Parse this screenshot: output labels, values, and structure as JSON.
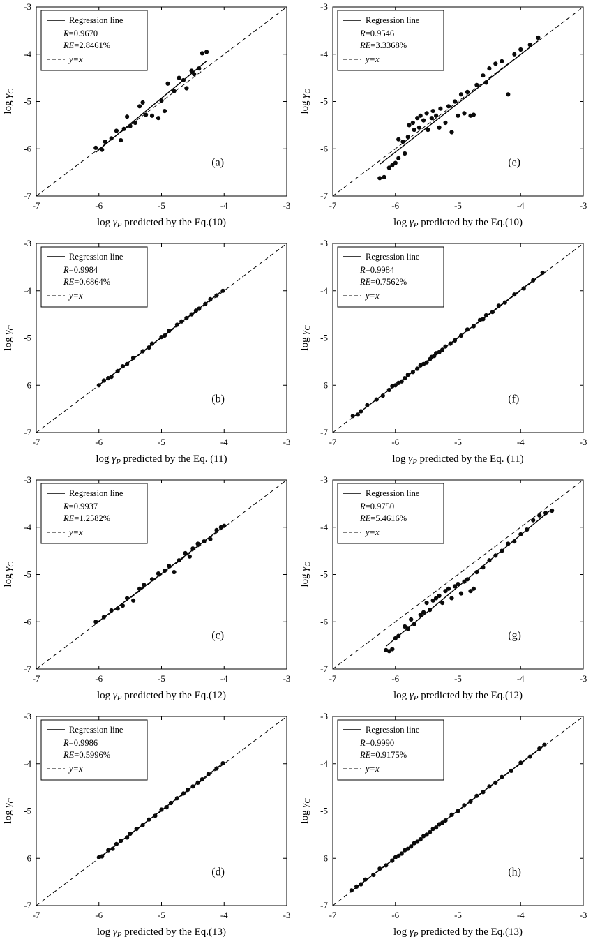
{
  "figure": {
    "ticks": [
      -7,
      -6,
      -5,
      -4,
      -3
    ],
    "tick_labels": [
      "-7",
      "-6",
      "-5",
      "-4",
      "-3"
    ],
    "legend": {
      "regression_label": "Regression line",
      "identity_label": "y=x"
    },
    "axis": {
      "log_prefix": "log ",
      "gamma": "γ",
      "x_sub": "P",
      "y_sub": "C",
      "ylabel": "log γC"
    }
  },
  "chart_data": [
    {
      "type": "scatter",
      "letter": "(a)",
      "r_text": "R=0.9670",
      "re_text": "RE=2.8461%",
      "xlabel": "log γP predicted by the Eq.(10)",
      "xlabel_rest": " predicted by the Eq.(10)",
      "ylabel": "log γC",
      "xlim": [
        -7,
        -3
      ],
      "ylim": [
        -7,
        -3
      ],
      "grid": false,
      "legend_position": "top-left",
      "points": [
        [
          -6.05,
          -5.98
        ],
        [
          -5.95,
          -6.02
        ],
        [
          -5.9,
          -5.85
        ],
        [
          -5.8,
          -5.78
        ],
        [
          -5.72,
          -5.62
        ],
        [
          -5.65,
          -5.82
        ],
        [
          -5.6,
          -5.58
        ],
        [
          -5.55,
          -5.32
        ],
        [
          -5.5,
          -5.52
        ],
        [
          -5.42,
          -5.45
        ],
        [
          -5.35,
          -5.1
        ],
        [
          -5.3,
          -5.02
        ],
        [
          -5.25,
          -5.28
        ],
        [
          -5.15,
          -5.3
        ],
        [
          -5.05,
          -5.35
        ],
        [
          -5.0,
          -4.98
        ],
        [
          -4.95,
          -5.2
        ],
        [
          -4.9,
          -4.62
        ],
        [
          -4.8,
          -4.78
        ],
        [
          -4.72,
          -4.5
        ],
        [
          -4.65,
          -4.55
        ],
        [
          -4.6,
          -4.72
        ],
        [
          -4.52,
          -4.35
        ],
        [
          -4.48,
          -4.42
        ],
        [
          -4.4,
          -4.3
        ],
        [
          -4.35,
          -3.98
        ],
        [
          -4.28,
          -3.95
        ]
      ]
    },
    {
      "type": "scatter",
      "letter": "(b)",
      "r_text": "R=0.9984",
      "re_text": "RE=0.6864%",
      "xlabel": "log γP predicted by the Eq. (11)",
      "xlabel_rest": " predicted by the Eq. (11)",
      "ylabel": "log γC",
      "xlim": [
        -7,
        -3
      ],
      "ylim": [
        -7,
        -3
      ],
      "grid": false,
      "legend_position": "top-left",
      "points": [
        [
          -6.0,
          -6.0
        ],
        [
          -5.92,
          -5.9
        ],
        [
          -5.85,
          -5.85
        ],
        [
          -5.8,
          -5.82
        ],
        [
          -5.7,
          -5.7
        ],
        [
          -5.62,
          -5.6
        ],
        [
          -5.55,
          -5.55
        ],
        [
          -5.45,
          -5.42
        ],
        [
          -5.3,
          -5.28
        ],
        [
          -5.2,
          -5.2
        ],
        [
          -5.15,
          -5.12
        ],
        [
          -5.0,
          -4.98
        ],
        [
          -4.95,
          -4.95
        ],
        [
          -4.88,
          -4.85
        ],
        [
          -4.75,
          -4.72
        ],
        [
          -4.68,
          -4.65
        ],
        [
          -4.6,
          -4.58
        ],
        [
          -4.52,
          -4.5
        ],
        [
          -4.45,
          -4.42
        ],
        [
          -4.4,
          -4.38
        ],
        [
          -4.3,
          -4.28
        ],
        [
          -4.22,
          -4.18
        ],
        [
          -4.12,
          -4.1
        ],
        [
          -4.02,
          -4.0
        ]
      ]
    },
    {
      "type": "scatter",
      "letter": "(c)",
      "r_text": "R=0.9937",
      "re_text": "RE=1.2582%",
      "xlabel": "log γP predicted by the Eq.(12)",
      "xlabel_rest": " predicted by the Eq.(12)",
      "ylabel": "log γC",
      "xlim": [
        -7,
        -3
      ],
      "ylim": [
        -7,
        -3
      ],
      "grid": false,
      "legend_position": "top-left",
      "points": [
        [
          -6.05,
          -6.0
        ],
        [
          -5.92,
          -5.9
        ],
        [
          -5.8,
          -5.76
        ],
        [
          -5.7,
          -5.72
        ],
        [
          -5.62,
          -5.66
        ],
        [
          -5.55,
          -5.5
        ],
        [
          -5.45,
          -5.55
        ],
        [
          -5.35,
          -5.3
        ],
        [
          -5.28,
          -5.22
        ],
        [
          -5.15,
          -5.1
        ],
        [
          -5.05,
          -4.98
        ],
        [
          -4.95,
          -4.92
        ],
        [
          -4.88,
          -4.82
        ],
        [
          -4.8,
          -4.95
        ],
        [
          -4.72,
          -4.7
        ],
        [
          -4.62,
          -4.55
        ],
        [
          -4.55,
          -4.62
        ],
        [
          -4.5,
          -4.45
        ],
        [
          -4.42,
          -4.35
        ],
        [
          -4.32,
          -4.3
        ],
        [
          -4.22,
          -4.25
        ],
        [
          -4.12,
          -4.06
        ],
        [
          -4.05,
          -4.0
        ],
        [
          -4.0,
          -3.97
        ]
      ]
    },
    {
      "type": "scatter",
      "letter": "(d)",
      "r_text": "R=0.9986",
      "re_text": "RE=0.5996%",
      "xlabel": "log γP predicted by the Eq.(13)",
      "xlabel_rest": " predicted by the Eq.(13)",
      "ylabel": "log γC",
      "xlim": [
        -7,
        -3
      ],
      "ylim": [
        -7,
        -3
      ],
      "grid": false,
      "legend_position": "top-left",
      "points": [
        [
          -6.0,
          -5.98
        ],
        [
          -5.95,
          -5.96
        ],
        [
          -5.85,
          -5.83
        ],
        [
          -5.78,
          -5.8
        ],
        [
          -5.72,
          -5.7
        ],
        [
          -5.65,
          -5.63
        ],
        [
          -5.55,
          -5.56
        ],
        [
          -5.5,
          -5.48
        ],
        [
          -5.4,
          -5.38
        ],
        [
          -5.3,
          -5.3
        ],
        [
          -5.2,
          -5.18
        ],
        [
          -5.1,
          -5.1
        ],
        [
          -5.0,
          -4.97
        ],
        [
          -4.92,
          -4.92
        ],
        [
          -4.85,
          -4.83
        ],
        [
          -4.75,
          -4.73
        ],
        [
          -4.65,
          -4.63
        ],
        [
          -4.58,
          -4.55
        ],
        [
          -4.5,
          -4.48
        ],
        [
          -4.42,
          -4.4
        ],
        [
          -4.35,
          -4.33
        ],
        [
          -4.25,
          -4.22
        ],
        [
          -4.12,
          -4.1
        ],
        [
          -4.02,
          -3.99
        ]
      ]
    },
    {
      "type": "scatter",
      "letter": "(e)",
      "r_text": "R=0.9546",
      "re_text": "RE=3.3368%",
      "xlabel": "log γP predicted by the Eq.(10)",
      "xlabel_rest": " predicted by the Eq.(10)",
      "ylabel": "log γC",
      "xlim": [
        -7,
        -3
      ],
      "ylim": [
        -7,
        -3
      ],
      "grid": false,
      "legend_position": "top-left",
      "points": [
        [
          -6.25,
          -6.62
        ],
        [
          -6.18,
          -6.6
        ],
        [
          -6.1,
          -6.4
        ],
        [
          -6.05,
          -6.35
        ],
        [
          -6.0,
          -6.3
        ],
        [
          -5.95,
          -6.2
        ],
        [
          -5.95,
          -5.8
        ],
        [
          -5.88,
          -5.85
        ],
        [
          -5.85,
          -6.1
        ],
        [
          -5.8,
          -5.75
        ],
        [
          -5.78,
          -5.5
        ],
        [
          -5.72,
          -5.45
        ],
        [
          -5.7,
          -5.6
        ],
        [
          -5.65,
          -5.35
        ],
        [
          -5.62,
          -5.55
        ],
        [
          -5.6,
          -5.3
        ],
        [
          -5.55,
          -5.4
        ],
        [
          -5.5,
          -5.25
        ],
        [
          -5.48,
          -5.6
        ],
        [
          -5.42,
          -5.35
        ],
        [
          -5.4,
          -5.2
        ],
        [
          -5.35,
          -5.3
        ],
        [
          -5.3,
          -5.55
        ],
        [
          -5.28,
          -5.15
        ],
        [
          -5.2,
          -5.45
        ],
        [
          -5.15,
          -5.1
        ],
        [
          -5.1,
          -5.65
        ],
        [
          -5.05,
          -5.0
        ],
        [
          -5.0,
          -5.3
        ],
        [
          -4.95,
          -4.85
        ],
        [
          -4.9,
          -5.25
        ],
        [
          -4.85,
          -4.8
        ],
        [
          -4.8,
          -5.3
        ],
        [
          -4.75,
          -5.28
        ],
        [
          -4.7,
          -4.65
        ],
        [
          -4.6,
          -4.45
        ],
        [
          -4.55,
          -4.6
        ],
        [
          -4.5,
          -4.3
        ],
        [
          -4.4,
          -4.2
        ],
        [
          -4.3,
          -4.15
        ],
        [
          -4.2,
          -4.85
        ],
        [
          -4.1,
          -4.0
        ],
        [
          -4.0,
          -3.9
        ],
        [
          -3.85,
          -3.8
        ],
        [
          -3.72,
          -3.65
        ]
      ]
    },
    {
      "type": "scatter",
      "letter": "(f)",
      "r_text": "R=0.9984",
      "re_text": "RE=0.7562%",
      "xlabel": "log γP predicted by the Eq. (11)",
      "xlabel_rest": " predicted by the Eq. (11)",
      "ylabel": "log γC",
      "xlim": [
        -7,
        -3
      ],
      "ylim": [
        -7,
        -3
      ],
      "grid": false,
      "legend_position": "top-left",
      "points": [
        [
          -6.68,
          -6.65
        ],
        [
          -6.6,
          -6.62
        ],
        [
          -6.55,
          -6.55
        ],
        [
          -6.45,
          -6.42
        ],
        [
          -6.3,
          -6.3
        ],
        [
          -6.2,
          -6.22
        ],
        [
          -6.1,
          -6.1
        ],
        [
          -6.05,
          -6.02
        ],
        [
          -6.0,
          -6.0
        ],
        [
          -5.95,
          -5.95
        ],
        [
          -5.9,
          -5.92
        ],
        [
          -5.85,
          -5.85
        ],
        [
          -5.8,
          -5.78
        ],
        [
          -5.72,
          -5.72
        ],
        [
          -5.65,
          -5.65
        ],
        [
          -5.6,
          -5.58
        ],
        [
          -5.55,
          -5.55
        ],
        [
          -5.5,
          -5.52
        ],
        [
          -5.45,
          -5.45
        ],
        [
          -5.42,
          -5.4
        ],
        [
          -5.38,
          -5.38
        ],
        [
          -5.35,
          -5.32
        ],
        [
          -5.3,
          -5.3
        ],
        [
          -5.25,
          -5.25
        ],
        [
          -5.2,
          -5.18
        ],
        [
          -5.12,
          -5.12
        ],
        [
          -5.05,
          -5.05
        ],
        [
          -4.95,
          -4.95
        ],
        [
          -4.85,
          -4.82
        ],
        [
          -4.75,
          -4.75
        ],
        [
          -4.65,
          -4.62
        ],
        [
          -4.6,
          -4.6
        ],
        [
          -4.55,
          -4.52
        ],
        [
          -4.45,
          -4.45
        ],
        [
          -4.35,
          -4.32
        ],
        [
          -4.25,
          -4.25
        ],
        [
          -4.1,
          -4.08
        ],
        [
          -3.95,
          -3.95
        ],
        [
          -3.8,
          -3.78
        ],
        [
          -3.65,
          -3.62
        ]
      ]
    },
    {
      "type": "scatter",
      "letter": "(g)",
      "r_text": "R=0.9750",
      "re_text": "RE=5.4616%",
      "xlabel": "log γP predicted by the Eq.(12)",
      "xlabel_rest": " predicted by the Eq.(12)",
      "ylabel": "log γC",
      "xlim": [
        -7,
        -3
      ],
      "ylim": [
        -7,
        -3
      ],
      "grid": false,
      "legend_position": "top-left",
      "points": [
        [
          -6.15,
          -6.6
        ],
        [
          -6.1,
          -6.62
        ],
        [
          -6.05,
          -6.58
        ],
        [
          -6.0,
          -6.35
        ],
        [
          -5.95,
          -6.3
        ],
        [
          -5.85,
          -6.1
        ],
        [
          -5.8,
          -6.15
        ],
        [
          -5.75,
          -5.95
        ],
        [
          -5.7,
          -6.05
        ],
        [
          -5.6,
          -5.85
        ],
        [
          -5.55,
          -5.8
        ],
        [
          -5.5,
          -5.6
        ],
        [
          -5.45,
          -5.75
        ],
        [
          -5.4,
          -5.55
        ],
        [
          -5.35,
          -5.5
        ],
        [
          -5.3,
          -5.45
        ],
        [
          -5.25,
          -5.6
        ],
        [
          -5.2,
          -5.35
        ],
        [
          -5.15,
          -5.3
        ],
        [
          -5.1,
          -5.5
        ],
        [
          -5.05,
          -5.25
        ],
        [
          -5.0,
          -5.2
        ],
        [
          -4.95,
          -5.4
        ],
        [
          -4.9,
          -5.15
        ],
        [
          -4.85,
          -5.1
        ],
        [
          -4.8,
          -5.35
        ],
        [
          -4.75,
          -5.3
        ],
        [
          -4.7,
          -4.95
        ],
        [
          -4.6,
          -4.85
        ],
        [
          -4.5,
          -4.7
        ],
        [
          -4.4,
          -4.6
        ],
        [
          -4.3,
          -4.5
        ],
        [
          -4.2,
          -4.35
        ],
        [
          -4.1,
          -4.3
        ],
        [
          -4.0,
          -4.15
        ],
        [
          -3.9,
          -4.05
        ],
        [
          -3.8,
          -3.85
        ],
        [
          -3.7,
          -3.75
        ],
        [
          -3.6,
          -3.7
        ],
        [
          -3.5,
          -3.65
        ]
      ]
    },
    {
      "type": "scatter",
      "letter": "(h)",
      "r_text": "R=0.9990",
      "re_text": "RE=0.9175%",
      "xlabel": "log γP predicted by the Eq.(13)",
      "xlabel_rest": " predicted by the Eq.(13)",
      "ylabel": "log γC",
      "xlim": [
        -7,
        -3
      ],
      "ylim": [
        -7,
        -3
      ],
      "grid": false,
      "legend_position": "top-left",
      "points": [
        [
          -6.7,
          -6.68
        ],
        [
          -6.62,
          -6.6
        ],
        [
          -6.55,
          -6.55
        ],
        [
          -6.48,
          -6.45
        ],
        [
          -6.35,
          -6.35
        ],
        [
          -6.25,
          -6.22
        ],
        [
          -6.15,
          -6.15
        ],
        [
          -6.05,
          -6.05
        ],
        [
          -6.0,
          -5.98
        ],
        [
          -5.95,
          -5.95
        ],
        [
          -5.9,
          -5.9
        ],
        [
          -5.85,
          -5.83
        ],
        [
          -5.8,
          -5.8
        ],
        [
          -5.75,
          -5.75
        ],
        [
          -5.7,
          -5.68
        ],
        [
          -5.65,
          -5.65
        ],
        [
          -5.6,
          -5.6
        ],
        [
          -5.55,
          -5.53
        ],
        [
          -5.5,
          -5.5
        ],
        [
          -5.45,
          -5.45
        ],
        [
          -5.4,
          -5.38
        ],
        [
          -5.35,
          -5.35
        ],
        [
          -5.3,
          -5.28
        ],
        [
          -5.25,
          -5.25
        ],
        [
          -5.2,
          -5.2
        ],
        [
          -5.1,
          -5.08
        ],
        [
          -5.0,
          -5.0
        ],
        [
          -4.9,
          -4.88
        ],
        [
          -4.8,
          -4.8
        ],
        [
          -4.7,
          -4.68
        ],
        [
          -4.6,
          -4.6
        ],
        [
          -4.5,
          -4.48
        ],
        [
          -4.4,
          -4.4
        ],
        [
          -4.3,
          -4.28
        ],
        [
          -4.15,
          -4.15
        ],
        [
          -4.0,
          -3.98
        ],
        [
          -3.85,
          -3.85
        ],
        [
          -3.7,
          -3.68
        ],
        [
          -3.62,
          -3.6
        ]
      ]
    }
  ]
}
